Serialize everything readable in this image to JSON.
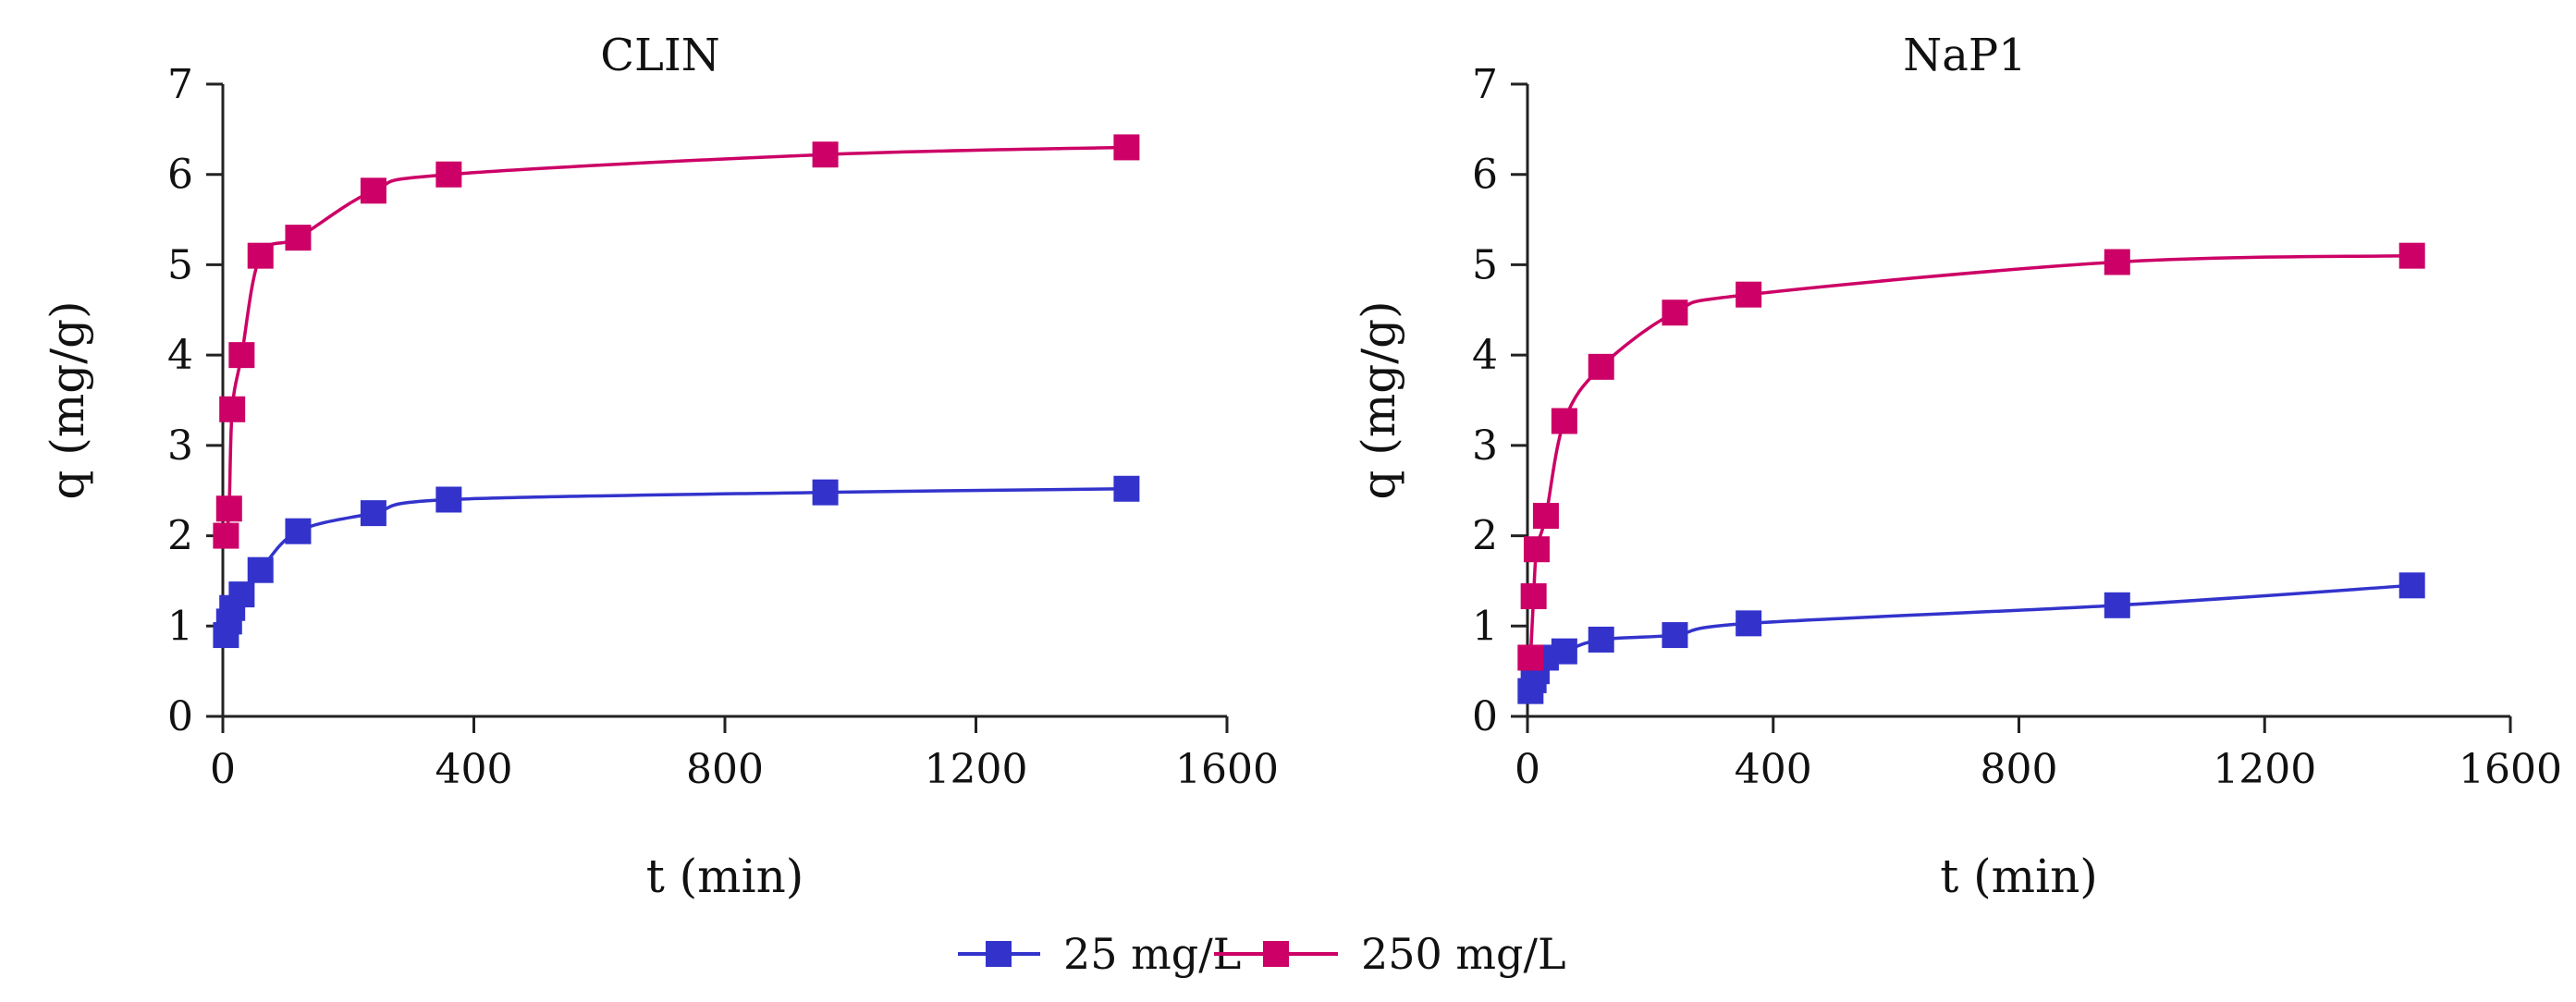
{
  "colors": {
    "series_25": "#3333cc",
    "series_250": "#cc0066",
    "axis": "#222222"
  },
  "chart_data": [
    {
      "type": "line",
      "title": "CLIN",
      "xlabel": "t (min)",
      "ylabel": "q (mg/g)",
      "xlim": [
        0,
        1600
      ],
      "ylim": [
        0,
        7
      ],
      "xticks": [
        "0",
        "400",
        "800",
        "1200",
        "1600"
      ],
      "yticks": [
        "0",
        "1",
        "2",
        "3",
        "4",
        "5",
        "6",
        "7"
      ],
      "grid": false,
      "x": [
        5,
        10,
        15,
        30,
        60,
        120,
        240,
        360,
        960,
        1440
      ],
      "series": [
        {
          "name": "25 mg/L",
          "values": [
            0.9,
            1.05,
            1.2,
            1.35,
            1.62,
            2.05,
            2.25,
            2.4,
            2.48,
            2.52
          ]
        },
        {
          "name": "250 mg/L",
          "values": [
            2.0,
            2.3,
            3.4,
            4.0,
            5.1,
            5.3,
            5.82,
            6.0,
            6.22,
            6.3
          ]
        }
      ]
    },
    {
      "type": "line",
      "title": "NaP1",
      "xlabel": "t (min)",
      "ylabel": "q (mg/g)",
      "xlim": [
        0,
        1600
      ],
      "ylim": [
        0,
        7
      ],
      "xticks": [
        "0",
        "400",
        "800",
        "1200",
        "1600"
      ],
      "yticks": [
        "0",
        "1",
        "2",
        "3",
        "4",
        "5",
        "6",
        "7"
      ],
      "grid": false,
      "x": [
        5,
        10,
        15,
        30,
        60,
        120,
        240,
        360,
        960,
        1440
      ],
      "series": [
        {
          "name": "25 mg/L",
          "values": [
            0.28,
            0.4,
            0.5,
            0.65,
            0.72,
            0.85,
            0.9,
            1.03,
            1.23,
            1.45
          ]
        },
        {
          "name": "250 mg/L",
          "values": [
            0.65,
            1.33,
            1.85,
            2.22,
            3.27,
            3.87,
            4.47,
            4.67,
            5.03,
            5.1
          ]
        }
      ]
    }
  ],
  "legend": {
    "placement": "bottom-center",
    "items": [
      "25 mg/L",
      "250 mg/L"
    ]
  }
}
